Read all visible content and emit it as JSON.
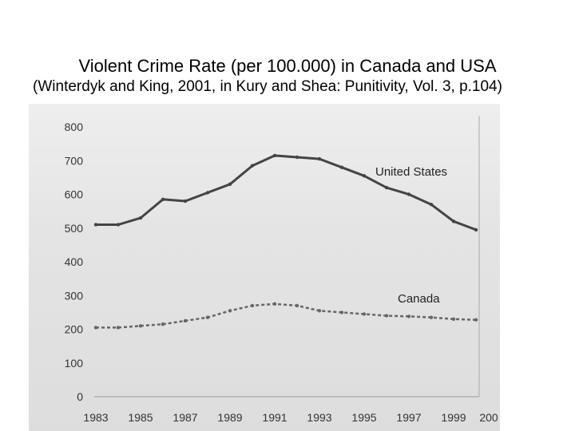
{
  "header": {
    "title": "Violent Crime Rate (per 100.000) in Canada and USA",
    "subtitle": "(Winterdyk and King, 2001, in Kury and Shea: Punitivity, Vol. 3, p.104)"
  },
  "chart_data": {
    "type": "line",
    "title": "Violent Crime Rate (per 100.000) in Canada and USA",
    "xlabel": "",
    "ylabel": "",
    "x": [
      1983,
      1984,
      1985,
      1986,
      1987,
      1988,
      1989,
      1990,
      1991,
      1992,
      1993,
      1994,
      1995,
      1996,
      1997,
      1998,
      1999,
      2000
    ],
    "x_ticks": [
      "1983",
      "1985",
      "1987",
      "1989",
      "1991",
      "1993",
      "1995",
      "1997",
      "1999",
      "200"
    ],
    "y_ticks": [
      0,
      100,
      200,
      300,
      400,
      500,
      600,
      700,
      800
    ],
    "xlim": [
      1983,
      2000
    ],
    "ylim": [
      0,
      800
    ],
    "series": [
      {
        "name": "United States",
        "color": "#444444",
        "values": [
          510,
          510,
          530,
          585,
          580,
          605,
          630,
          685,
          715,
          710,
          705,
          680,
          655,
          620,
          600,
          570,
          520,
          495
        ]
      },
      {
        "name": "Canada",
        "color": "#666666",
        "values": [
          205,
          205,
          210,
          215,
          225,
          235,
          255,
          270,
          275,
          270,
          255,
          250,
          245,
          240,
          238,
          235,
          230,
          228
        ]
      }
    ]
  }
}
